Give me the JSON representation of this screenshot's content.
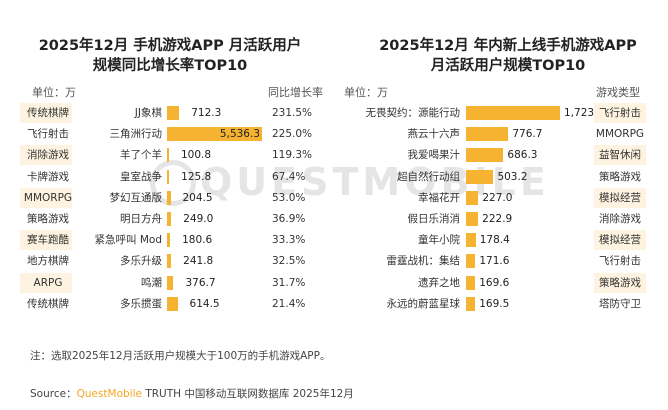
{
  "left": {
    "title_line1": "2025年12月 手机游戏APP 月活跃用户",
    "title_line2": "规模同比增长率TOP10",
    "unit": "单位：万",
    "growth_header": "同比增长率",
    "rows": [
      {
        "category": "传统棋牌",
        "name": "JJ象棋",
        "value": 712.3,
        "value_label": "712.3",
        "growth": "231.5%",
        "shaded": true
      },
      {
        "category": "飞行射击",
        "name": "三角洲行动",
        "value": 5536.3,
        "value_label": "5,536.3",
        "growth": "225.0%",
        "shaded": false
      },
      {
        "category": "消除游戏",
        "name": "羊了个羊",
        "value": 100.8,
        "value_label": "100.8",
        "growth": "119.3%",
        "shaded": true
      },
      {
        "category": "卡牌游戏",
        "name": "皇室战争",
        "value": 125.8,
        "value_label": "125.8",
        "growth": "67.4%",
        "shaded": false
      },
      {
        "category": "MMORPG",
        "name": "梦幻互通版",
        "value": 204.5,
        "value_label": "204.5",
        "growth": "53.0%",
        "shaded": true
      },
      {
        "category": "策略游戏",
        "name": "明日方舟",
        "value": 249.0,
        "value_label": "249.0",
        "growth": "36.9%",
        "shaded": false
      },
      {
        "category": "赛车跑酷",
        "name": "紧急呼叫 Mod",
        "value": 180.6,
        "value_label": "180.6",
        "growth": "33.3%",
        "shaded": true
      },
      {
        "category": "地方棋牌",
        "name": "多乐升级",
        "value": 241.8,
        "value_label": "241.8",
        "growth": "32.5%",
        "shaded": false
      },
      {
        "category": "ARPG",
        "name": "鸣潮",
        "value": 376.7,
        "value_label": "376.7",
        "growth": "31.7%",
        "shaded": true
      },
      {
        "category": "传统棋牌",
        "name": "多乐掼蛋",
        "value": 614.5,
        "value_label": "614.5",
        "growth": "21.4%",
        "shaded": false
      }
    ]
  },
  "right": {
    "title_line1": "2025年12月 年内新上线手机游戏APP",
    "title_line2": "月活跃用户规模TOP10",
    "unit": "单位：万",
    "type_header": "游戏类型",
    "rows": [
      {
        "name": "无畏契约：源能行动",
        "value": 1723.6,
        "value_label": "1,723.6",
        "category": "飞行射击",
        "shaded": true
      },
      {
        "name": "燕云十六声",
        "value": 776.7,
        "value_label": "776.7",
        "category": "MMORPG",
        "shaded": false
      },
      {
        "name": "我爱喝果汁",
        "value": 686.3,
        "value_label": "686.3",
        "category": "益智休闲",
        "shaded": true
      },
      {
        "name": "超自然行动组",
        "value": 503.2,
        "value_label": "503.2",
        "category": "策略游戏",
        "shaded": false
      },
      {
        "name": "幸福花开",
        "value": 227.0,
        "value_label": "227.0",
        "category": "模拟经营",
        "shaded": true
      },
      {
        "name": "假日乐消消",
        "value": 222.9,
        "value_label": "222.9",
        "category": "消除游戏",
        "shaded": false
      },
      {
        "name": "童年小院",
        "value": 178.4,
        "value_label": "178.4",
        "category": "模拟经营",
        "shaded": true
      },
      {
        "name": "雷霆战机：集结",
        "value": 171.6,
        "value_label": "171.6",
        "category": "飞行射击",
        "shaded": false
      },
      {
        "name": "遗弃之地",
        "value": 169.6,
        "value_label": "169.6",
        "category": "策略游戏",
        "shaded": true
      },
      {
        "name": "永远的蔚蓝星球",
        "value": 169.5,
        "value_label": "169.5",
        "category": "塔防守卫",
        "shaded": false
      }
    ]
  },
  "watermark": "QUESTMOBILE",
  "note": "注：选取2025年12月活跃用户规模大于100万的手机游戏APP。",
  "source_prefix": "Source：",
  "source_brand": "QuestMobile",
  "source_suffix": " TRUTH 中国移动互联网数据库 2025年12月",
  "colors": {
    "bar": "#f5b331",
    "row_shade": "#fdf3e0",
    "brand": "#f5a623"
  },
  "chart_data": [
    {
      "type": "bar",
      "title": "2025年12月 手机游戏APP 月活跃用户规模同比增长率TOP10",
      "categories": [
        "JJ象棋",
        "三角洲行动",
        "羊了个羊",
        "皇室战争",
        "梦幻互通版",
        "明日方舟",
        "紧急呼叫 Mod",
        "多乐升级",
        "鸣潮",
        "多乐掼蛋"
      ],
      "series": [
        {
          "name": "",
          "values": [
            712.3,
            5536.3,
            100.8,
            125.8,
            204.5,
            249.0,
            180.6,
            241.8,
            376.7,
            614.5
          ]
        }
      ],
      "growth": [
        "231.5%",
        "225.0%",
        "119.3%",
        "67.4%",
        "53.0%",
        "36.9%",
        "33.3%",
        "32.5%",
        "31.7%",
        "21.4%"
      ],
      "game_types": [
        "传统棋牌",
        "飞行射击",
        "消除游戏",
        "卡牌游戏",
        "MMORPG",
        "策略游戏",
        "赛车跑酷",
        "地方棋牌",
        "ARPG",
        "传统棋牌"
      ],
      "unit": "万"
    },
    {
      "type": "bar",
      "title": "2025年12月 年内新上线手机游戏APP月活跃用户规模TOP10",
      "categories": [
        "无畏契约：源能行动",
        "燕云十六声",
        "我爱喝果汁",
        "超自然行动组",
        "幸福花开",
        "假日乐消消",
        "童年小院",
        "雷霆战机：集结",
        "遗弃之地",
        "永远的蔚蓝星球"
      ],
      "series": [
        {
          "name": "",
          "values": [
            1723.6,
            776.7,
            686.3,
            503.2,
            227.0,
            222.9,
            178.4,
            171.6,
            169.6,
            169.5
          ]
        }
      ],
      "game_types": [
        "飞行射击",
        "MMORPG",
        "益智休闲",
        "策略游戏",
        "模拟经营",
        "消除游戏",
        "模拟经营",
        "飞行射击",
        "策略游戏",
        "塔防守卫"
      ],
      "unit": "万"
    }
  ]
}
